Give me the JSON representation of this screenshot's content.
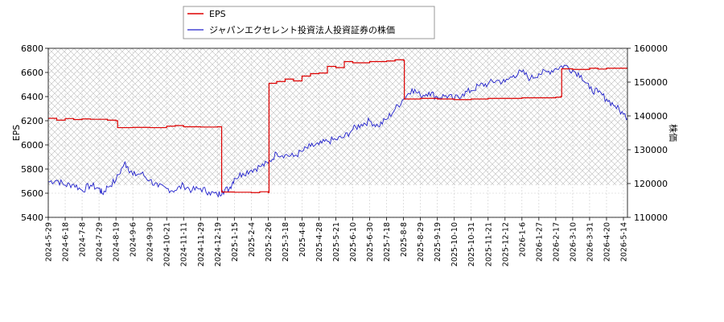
{
  "chart_data": {
    "type": "line",
    "legend": {
      "placement": "top-left-outside",
      "entries": [
        "EPS",
        "ジャパンエクセレント投資法人投資証券の株価"
      ]
    },
    "left_axis": {
      "label": "EPS",
      "ylim": [
        5400,
        6800
      ],
      "ticks": [
        "5400",
        "5600",
        "5800",
        "6000",
        "6200",
        "6400",
        "6600",
        "6800"
      ]
    },
    "right_axis": {
      "label": "株価",
      "ylim": [
        110000,
        160000
      ],
      "ticks": [
        "110000",
        "120000",
        "130000",
        "140000",
        "150000",
        "160000"
      ]
    },
    "x_tick_labels": [
      "2024-5-29",
      "2024-6-18",
      "2024-7-8",
      "2024-7-29",
      "2024-8-19",
      "2024-9-6",
      "2024-9-30",
      "2024-10-21",
      "2024-11-11",
      "2024-11-29",
      "2024-12-19",
      "2025-1-15",
      "2025-2-4",
      "2025-2-26",
      "2025-3-18",
      "2025-4-8",
      "2025-4-28",
      "2025-5-21",
      "2025-6-10",
      "2025-6-30",
      "2025-7-18",
      "2025-8-8",
      "2025-8-29",
      "2025-9-19",
      "2025-10-10",
      "2025-10-31",
      "2025-11-21",
      "2025-12-12",
      "2026-1-6",
      "2026-1-27",
      "2026-2-17",
      "2026-3-10",
      "2026-3-31",
      "2026-4-20",
      "2026-5-14"
    ],
    "hatched_region": {
      "y_from": 5666,
      "y_to": 6800,
      "color": "#bbbbbb"
    },
    "grid": true,
    "series": [
      {
        "name": "EPS",
        "axis": "left",
        "color": "#dd0000",
        "step": true,
        "points": [
          [
            0,
            6220
          ],
          [
            0.5,
            6205
          ],
          [
            1,
            6218
          ],
          [
            1.5,
            6210
          ],
          [
            2,
            6215
          ],
          [
            2.5,
            6212
          ],
          [
            3,
            6212
          ],
          [
            3.5,
            6205
          ],
          [
            4,
            6200
          ],
          [
            4.1,
            6143
          ],
          [
            5,
            6145
          ],
          [
            6,
            6143
          ],
          [
            7,
            6155
          ],
          [
            7.5,
            6160
          ],
          [
            8,
            6150
          ],
          [
            9,
            6148
          ],
          [
            10,
            6150
          ],
          [
            10.2,
            6150
          ],
          [
            10.25,
            5610
          ],
          [
            11,
            5608
          ],
          [
            12,
            5605
          ],
          [
            12.5,
            5612
          ],
          [
            13,
            5605
          ],
          [
            13.05,
            6510
          ],
          [
            13.5,
            6525
          ],
          [
            14,
            6545
          ],
          [
            14.5,
            6530
          ],
          [
            15,
            6570
          ],
          [
            15.5,
            6590
          ],
          [
            16,
            6595
          ],
          [
            16.5,
            6650
          ],
          [
            17,
            6640
          ],
          [
            17.5,
            6690
          ],
          [
            18,
            6680
          ],
          [
            19,
            6690
          ],
          [
            20,
            6695
          ],
          [
            20.5,
            6705
          ],
          [
            21,
            6700
          ],
          [
            21.05,
            6380
          ],
          [
            22,
            6385
          ],
          [
            23,
            6380
          ],
          [
            24,
            6375
          ],
          [
            25,
            6380
          ],
          [
            26,
            6385
          ],
          [
            27,
            6385
          ],
          [
            28,
            6390
          ],
          [
            29,
            6390
          ],
          [
            30,
            6395
          ],
          [
            30.3,
            6400
          ],
          [
            30.35,
            6630
          ],
          [
            31,
            6625
          ],
          [
            32,
            6635
          ],
          [
            32.5,
            6628
          ],
          [
            33,
            6635
          ],
          [
            34,
            6635
          ],
          [
            34.8,
            6638
          ]
        ]
      },
      {
        "name": "ジャパンエクセレント投資法人投資証券の株価",
        "axis": "right",
        "color": "#2222cc",
        "points": [
          [
            0,
            120500
          ],
          [
            0.5,
            121000
          ],
          [
            1,
            119500
          ],
          [
            1.5,
            119800
          ],
          [
            2,
            118000
          ],
          [
            2.5,
            119500
          ],
          [
            3,
            118500
          ],
          [
            3.2,
            117000
          ],
          [
            3.5,
            119000
          ],
          [
            4,
            121000
          ],
          [
            4.5,
            126000
          ],
          [
            4.7,
            125000
          ],
          [
            5,
            122500
          ],
          [
            5.5,
            123000
          ],
          [
            6,
            121000
          ],
          [
            6.5,
            119000
          ],
          [
            7,
            118500
          ],
          [
            7.5,
            118000
          ],
          [
            8,
            119500
          ],
          [
            8.5,
            118000
          ],
          [
            9,
            118500
          ],
          [
            9.5,
            117500
          ],
          [
            10,
            116500
          ],
          [
            10.3,
            117800
          ],
          [
            10.7,
            118500
          ],
          [
            11,
            121500
          ],
          [
            11.5,
            123000
          ],
          [
            12,
            124000
          ],
          [
            12.5,
            125000
          ],
          [
            13,
            126000
          ],
          [
            13.5,
            129000
          ],
          [
            14,
            128500
          ],
          [
            14.5,
            128000
          ],
          [
            15,
            129500
          ],
          [
            15.5,
            131000
          ],
          [
            16,
            131500
          ],
          [
            16.5,
            132500
          ],
          [
            17,
            133000
          ],
          [
            17.5,
            133800
          ],
          [
            18,
            136000
          ],
          [
            18.5,
            137500
          ],
          [
            19,
            138500
          ],
          [
            19.5,
            137000
          ],
          [
            20,
            139000
          ],
          [
            20.5,
            142000
          ],
          [
            21,
            145000
          ],
          [
            21.5,
            148000
          ],
          [
            22,
            146000
          ],
          [
            22.5,
            147000
          ],
          [
            23,
            145500
          ],
          [
            23.5,
            146000
          ],
          [
            24,
            145000
          ],
          [
            24.5,
            146500
          ],
          [
            25,
            147500
          ],
          [
            25.5,
            149000
          ],
          [
            26,
            149500
          ],
          [
            26.5,
            150500
          ],
          [
            27,
            150000
          ],
          [
            27.5,
            152000
          ],
          [
            28,
            153000
          ],
          [
            28.5,
            151000
          ],
          [
            29,
            152500
          ],
          [
            29.5,
            153000
          ],
          [
            30,
            154000
          ],
          [
            30.5,
            155000
          ],
          [
            31,
            153500
          ],
          [
            31.5,
            152000
          ],
          [
            32,
            148000
          ],
          [
            32.5,
            147000
          ],
          [
            33,
            145000
          ],
          [
            33.5,
            143000
          ],
          [
            34,
            140500
          ],
          [
            34.5,
            139000
          ],
          [
            34.8,
            139500
          ]
        ]
      }
    ]
  }
}
